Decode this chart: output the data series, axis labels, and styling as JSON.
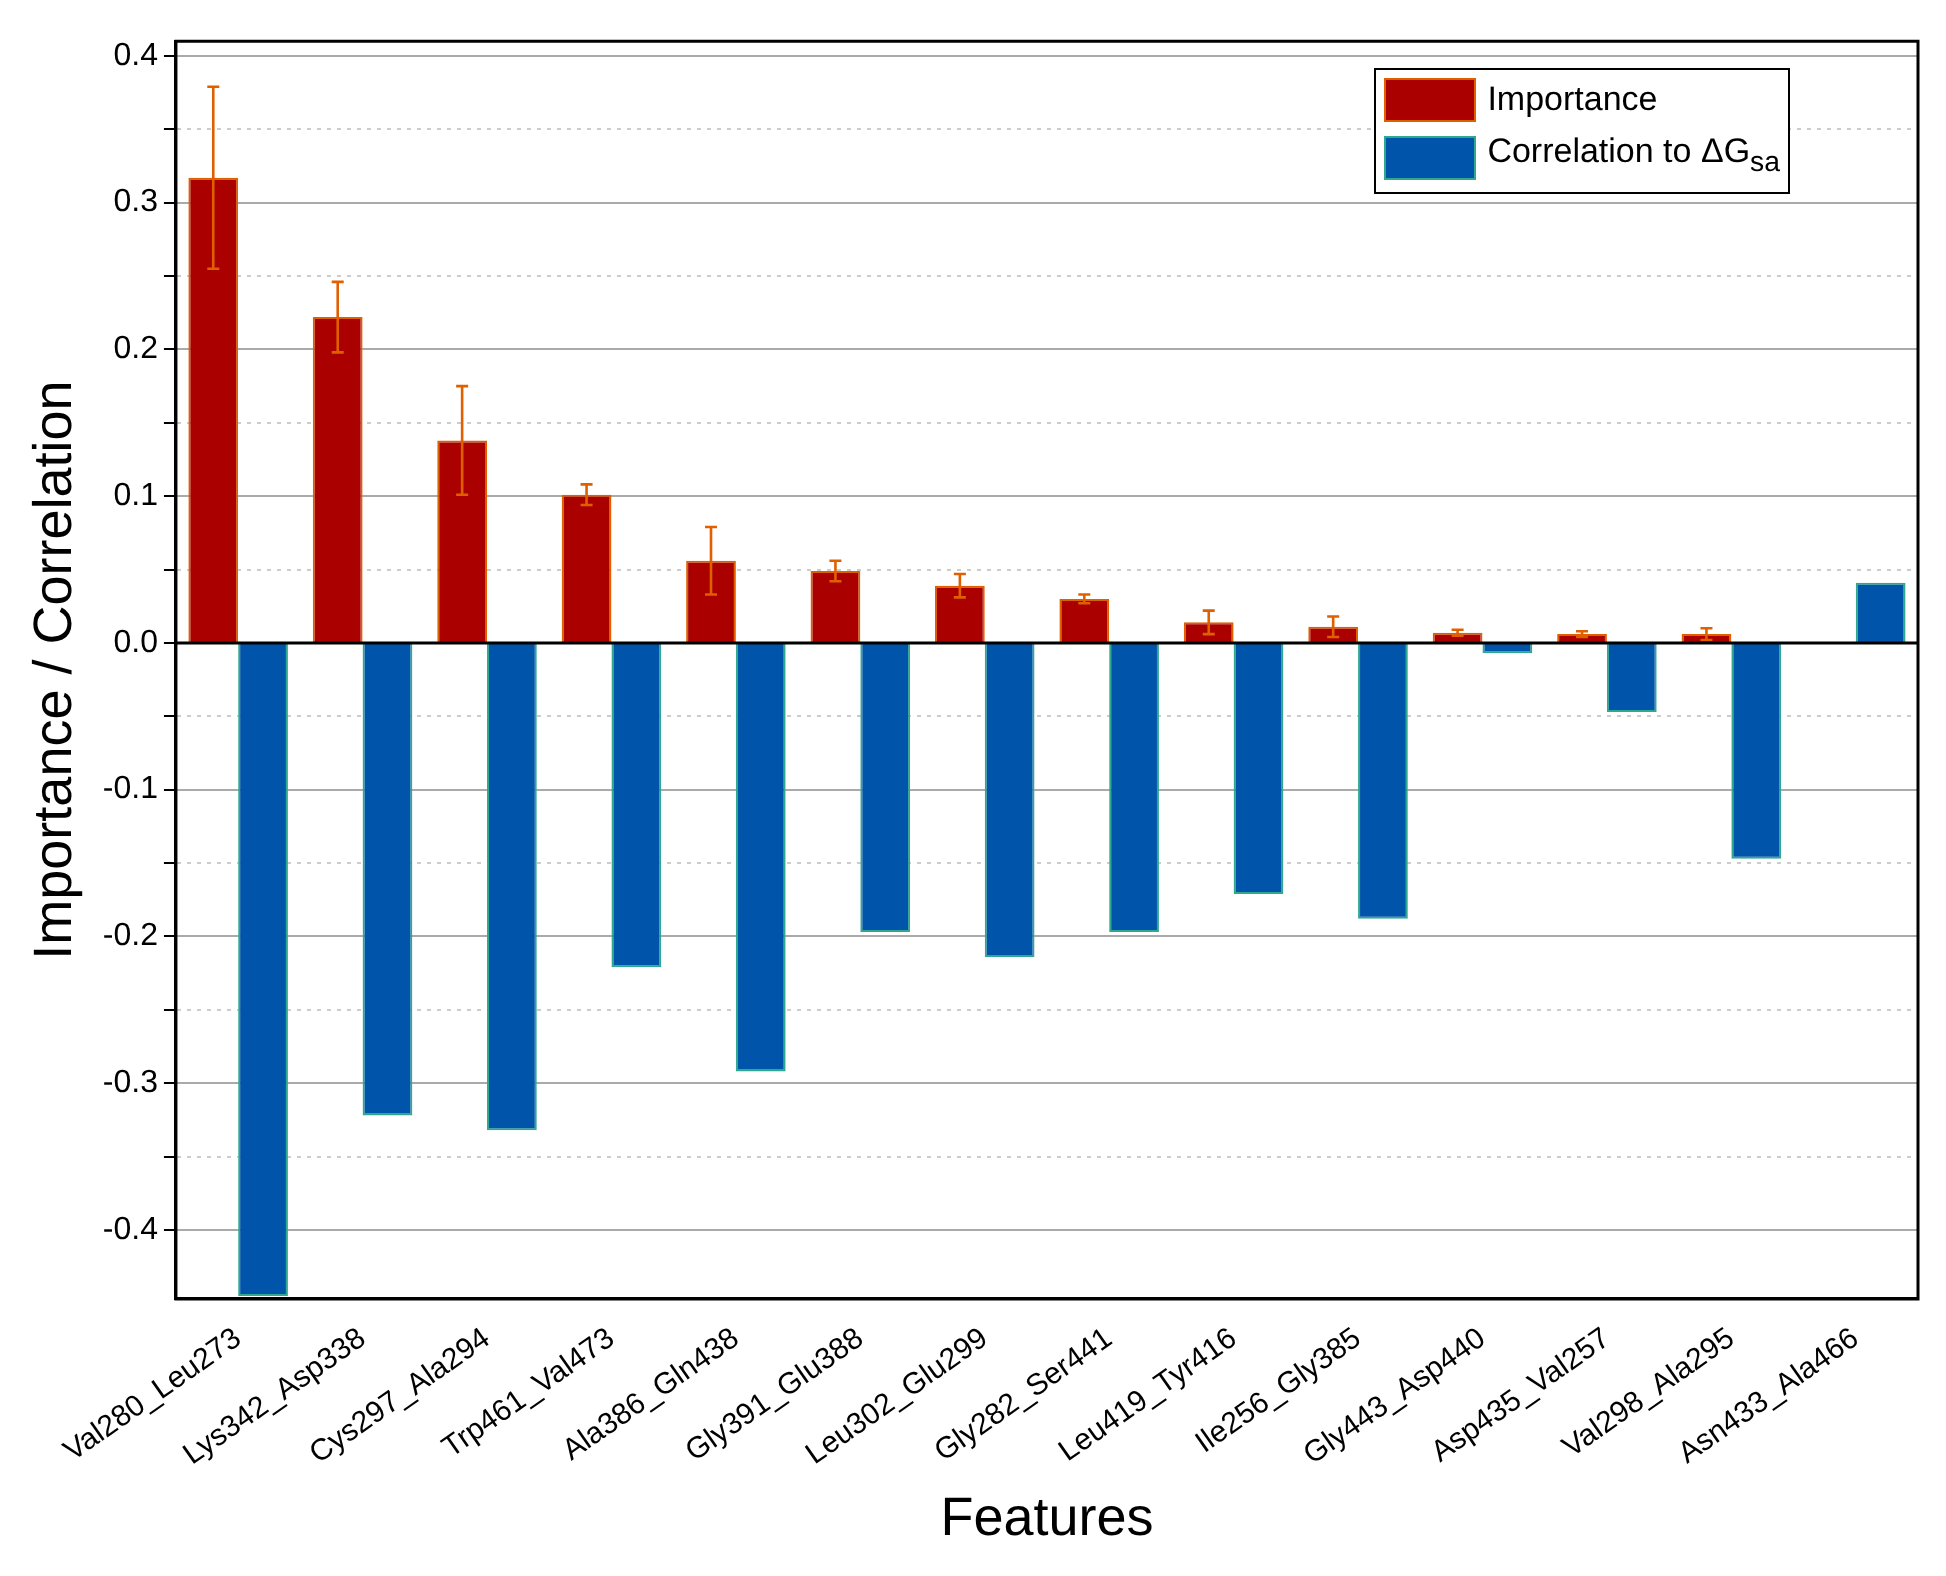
{
  "chart_data": {
    "type": "bar",
    "xlabel": "Features",
    "ylabel": "Importance / Correlation",
    "categories": [
      "Val280_Leu273",
      "Lys342_Asp338",
      "Cys297_Ala294",
      "Trp461_Val473",
      "Ala386_Gln438",
      "Gly391_Glu388",
      "Leu302_Glu299",
      "Gly282_Ser441",
      "Leu419_Tyr416",
      "Ile256_Gly385",
      "Gly443_Asp440",
      "Asp435_Val257",
      "Val298_Ala295",
      "Asn433_Ala466"
    ],
    "series": [
      {
        "name": "Importance",
        "color": "#aa0000",
        "values": [
          0.317,
          0.222,
          0.138,
          0.101,
          0.056,
          0.049,
          0.039,
          0.03,
          0.014,
          0.011,
          0.007,
          0.006,
          0.006,
          null
        ],
        "errors": [
          0.062,
          0.024,
          0.037,
          0.007,
          0.023,
          0.007,
          0.008,
          0.003,
          0.008,
          0.007,
          0.002,
          0.002,
          0.004,
          null
        ]
      },
      {
        "name": "Correlation to ΔG$_{sa}$",
        "color": "#0055aa",
        "values": [
          -0.445,
          -0.322,
          -0.332,
          -0.221,
          -0.292,
          -0.197,
          -0.214,
          -0.197,
          -0.171,
          -0.188,
          -0.007,
          -0.047,
          -0.147,
          0.041
        ]
      }
    ],
    "ylim": [
      -0.447,
      0.41
    ],
    "yticks": [
      {
        "value": -0.4,
        "label": "-0.4"
      },
      {
        "value": -0.35,
        "label": null
      },
      {
        "value": -0.3,
        "label": "-0.3"
      },
      {
        "value": -0.25,
        "label": null
      },
      {
        "value": -0.2,
        "label": "-0.2"
      },
      {
        "value": -0.15,
        "label": null
      },
      {
        "value": -0.1,
        "label": "-0.1"
      },
      {
        "value": -0.05,
        "label": null
      },
      {
        "value": 0,
        "label": "0.0"
      },
      {
        "value": 0.05,
        "label": null
      },
      {
        "value": 0.1,
        "label": "0.1"
      },
      {
        "value": 0.15,
        "label": null
      },
      {
        "value": 0.2,
        "label": "0.2"
      },
      {
        "value": 0.25,
        "label": null
      },
      {
        "value": 0.3,
        "label": "0.3"
      },
      {
        "value": 0.35,
        "label": null
      },
      {
        "value": 0.4,
        "label": "0.4"
      }
    ],
    "grid": "y",
    "legend": "top right"
  }
}
